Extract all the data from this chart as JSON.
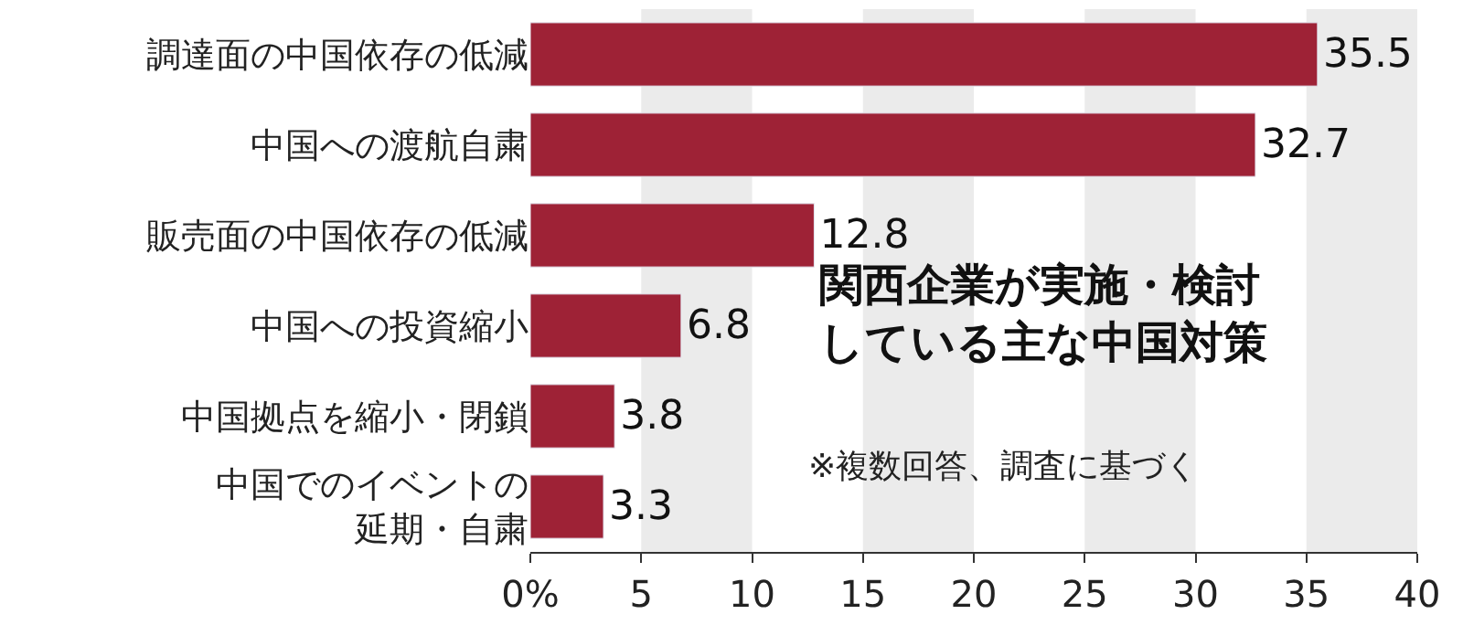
{
  "chart_data": {
    "type": "bar",
    "orientation": "horizontal",
    "title": "関西企業が実施・検討している主な中国対策",
    "categories": [
      "調達面の中国依存の低減",
      "中国への渡航自粛",
      "販売面の中国依存の低減",
      "中国への投資縮小",
      "中国拠点を縮小・閉鎖",
      "中国でのイベントの延期・自粛"
    ],
    "values": [
      35.5,
      32.7,
      12.8,
      6.8,
      3.8,
      3.3
    ],
    "color": "#9e2236",
    "data_labels": true,
    "xlim": [
      0,
      40
    ],
    "xticks": [
      {
        "value": 0,
        "label": "0%"
      },
      5,
      10,
      15,
      20,
      25,
      30,
      35,
      40
    ],
    "bands": [
      {
        "axis": "x",
        "from": 5,
        "to": 10,
        "color": "#ebebeb"
      },
      {
        "axis": "x",
        "from": 15,
        "to": 20,
        "color": "#ebebeb"
      },
      {
        "axis": "x",
        "from": 25,
        "to": 30,
        "color": "#ebebeb"
      },
      {
        "axis": "x",
        "from": 35,
        "to": 40,
        "color": "#ebebeb"
      }
    ],
    "annotations": [
      "※複数回答、調査に基づく"
    ],
    "grid": false
  }
}
